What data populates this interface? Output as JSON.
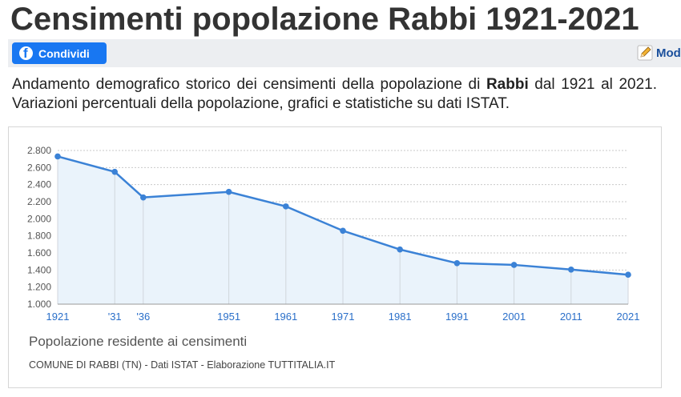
{
  "page": {
    "title": "Censimenti popolazione Rabbi 1921-2021"
  },
  "toolbar": {
    "share_label": "Condividi",
    "edit_label": "Mod"
  },
  "intro": {
    "before": "Andamento demografico storico dei censimenti della popolazione di ",
    "place": "Rabbi",
    "after": " dal 1921 al 2021. Variazioni percentuali della popolazione, grafici e statistiche su dati ISTAT."
  },
  "chart_data": {
    "type": "area",
    "title": "Popolazione residente ai censimenti",
    "source": "COMUNE DI RABBI (TN) - Dati ISTAT - Elaborazione TUTTITALIA.IT",
    "x": [
      1921,
      1931,
      1936,
      1951,
      1961,
      1971,
      1981,
      1991,
      2001,
      2011,
      2021
    ],
    "x_labels": [
      "1921",
      "'31",
      "'36",
      "1951",
      "1961",
      "1971",
      "1981",
      "1991",
      "2001",
      "2011",
      "2021"
    ],
    "values": [
      2730,
      2550,
      2250,
      2315,
      2145,
      1860,
      1640,
      1480,
      1460,
      1405,
      1345
    ],
    "ylim": [
      1000,
      2800
    ],
    "y_ticks": [
      1000,
      1200,
      1400,
      1600,
      1800,
      2000,
      2200,
      2400,
      2600,
      2800
    ],
    "y_tick_labels": [
      "1.000",
      "1.200",
      "1.400",
      "1.600",
      "1.800",
      "2.000",
      "2.200",
      "2.400",
      "2.600",
      "2.800"
    ],
    "grid": true,
    "colors": {
      "line": "#3b82d6",
      "fill": "#eaf3fb",
      "x_labels": "#2a6fc9"
    }
  }
}
